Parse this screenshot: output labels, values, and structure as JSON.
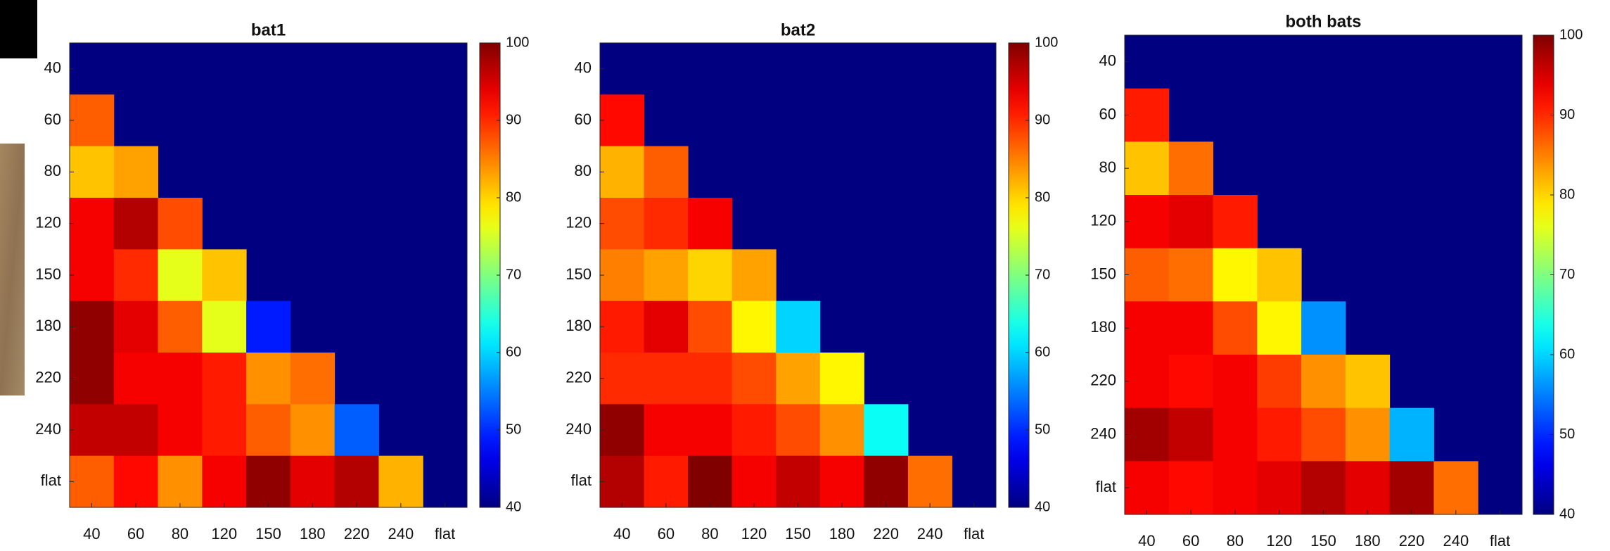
{
  "chart_data": [
    {
      "type": "heatmap",
      "title": "bat1",
      "colormap": "jet",
      "zlim": [
        40,
        100
      ],
      "zticks": [
        40,
        50,
        60,
        70,
        80,
        90,
        100
      ],
      "x": [
        "40",
        "60",
        "80",
        "120",
        "150",
        "180",
        "220",
        "240",
        "flat"
      ],
      "y": [
        "40",
        "60",
        "80",
        "120",
        "150",
        "180",
        "220",
        "240",
        "flat"
      ],
      "values": [
        [
          null,
          null,
          null,
          null,
          null,
          null,
          null,
          null,
          null
        ],
        [
          87,
          null,
          null,
          null,
          null,
          null,
          null,
          null,
          null
        ],
        [
          81,
          83,
          null,
          null,
          null,
          null,
          null,
          null,
          null
        ],
        [
          93,
          97,
          88,
          null,
          null,
          null,
          null,
          null,
          null
        ],
        [
          93,
          90,
          76,
          81,
          null,
          null,
          null,
          null,
          null
        ],
        [
          99,
          94,
          87,
          76,
          49,
          null,
          null,
          null,
          null
        ],
        [
          99,
          93,
          93,
          91,
          84,
          86,
          null,
          null,
          null
        ],
        [
          96,
          96,
          93,
          91,
          87,
          84,
          53,
          null,
          null
        ],
        [
          87,
          92,
          84,
          93,
          99,
          94,
          97,
          82,
          null
        ]
      ]
    },
    {
      "type": "heatmap",
      "title": "bat2",
      "colormap": "jet",
      "zlim": [
        40,
        100
      ],
      "zticks": [
        40,
        50,
        60,
        70,
        80,
        90,
        100
      ],
      "x": [
        "40",
        "60",
        "80",
        "120",
        "150",
        "180",
        "220",
        "240",
        "flat"
      ],
      "y": [
        "40",
        "60",
        "80",
        "120",
        "150",
        "180",
        "220",
        "240",
        "flat"
      ],
      "values": [
        [
          null,
          null,
          null,
          null,
          null,
          null,
          null,
          null,
          null
        ],
        [
          92,
          null,
          null,
          null,
          null,
          null,
          null,
          null,
          null
        ],
        [
          82,
          87,
          null,
          null,
          null,
          null,
          null,
          null,
          null
        ],
        [
          88,
          90,
          93,
          null,
          null,
          null,
          null,
          null,
          null
        ],
        [
          85,
          83,
          80,
          83,
          null,
          null,
          null,
          null,
          null
        ],
        [
          91,
          94,
          88,
          78,
          60,
          null,
          null,
          null,
          null
        ],
        [
          90,
          90,
          90,
          88,
          83,
          78,
          null,
          null,
          null
        ],
        [
          99,
          93,
          93,
          91,
          88,
          84,
          63,
          null,
          null
        ],
        [
          97,
          91,
          100,
          93,
          96,
          93,
          99,
          86,
          null
        ]
      ]
    },
    {
      "type": "heatmap",
      "title": "both bats",
      "colormap": "jet",
      "zlim": [
        40,
        100
      ],
      "zticks": [
        40,
        50,
        60,
        70,
        80,
        90,
        100
      ],
      "x": [
        "40",
        "60",
        "80",
        "120",
        "150",
        "180",
        "220",
        "240",
        "flat"
      ],
      "y": [
        "40",
        "60",
        "80",
        "120",
        "150",
        "180",
        "220",
        "240",
        "flat"
      ],
      "values": [
        [
          null,
          null,
          null,
          null,
          null,
          null,
          null,
          null,
          null
        ],
        [
          91,
          null,
          null,
          null,
          null,
          null,
          null,
          null,
          null
        ],
        [
          81,
          86,
          null,
          null,
          null,
          null,
          null,
          null,
          null
        ],
        [
          93,
          94,
          91,
          null,
          null,
          null,
          null,
          null,
          null
        ],
        [
          87,
          86,
          78,
          81,
          null,
          null,
          null,
          null,
          null
        ],
        [
          93,
          93,
          88,
          78,
          56,
          null,
          null,
          null,
          null
        ],
        [
          93,
          92,
          93,
          89,
          84,
          81,
          null,
          null,
          null
        ],
        [
          98,
          96,
          93,
          91,
          88,
          84,
          58,
          null,
          null
        ],
        [
          93,
          92,
          93,
          94,
          97,
          94,
          98,
          86,
          null
        ]
      ]
    }
  ]
}
